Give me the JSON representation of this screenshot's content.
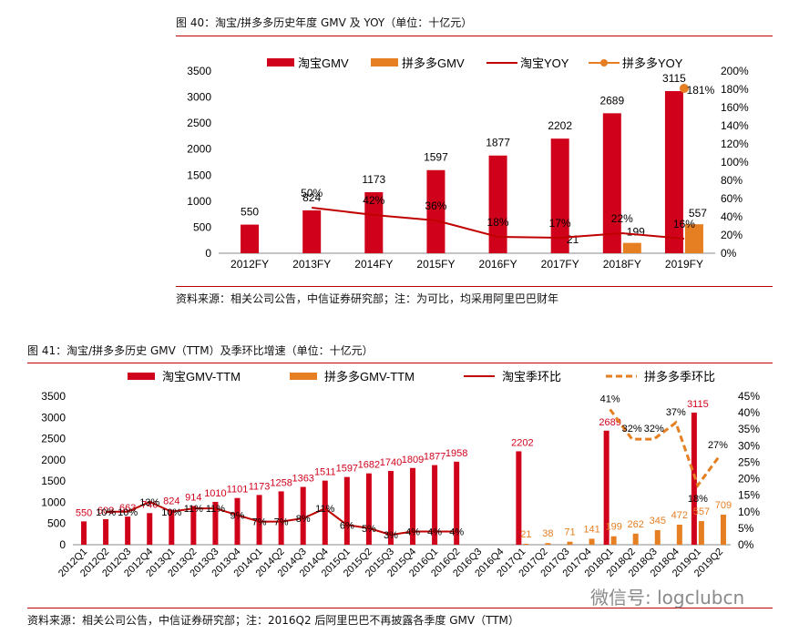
{
  "fig40": {
    "caption": "图 40：淘宝/拼多多历史年度 GMV 及 YOY（单位：十亿元）",
    "source": "资料来源：相关公司公告，中信证券研究部；注：为可比，均采用阿里巴巴财年"
  },
  "fig41": {
    "caption": "图 41：淘宝/拼多多历史 GMV（TTM）及季环比增速（单位：十亿元）",
    "source": "资料来源：相关公司公告，中信证券研究部；注：2016Q2 后阿里巴巴不再披露各季度 GMV（TTM）"
  },
  "watermark": "微信号: logclubcn",
  "colors": {
    "red": "#d0021b",
    "orange": "#e67e22",
    "darkred": "#c00000",
    "rule": "#c00000"
  },
  "chart_data": [
    {
      "type": "bar",
      "categories": [
        "2012FY",
        "2013FY",
        "2014FY",
        "2015FY",
        "2016FY",
        "2017FY",
        "2018FY",
        "2019FY"
      ],
      "series": [
        {
          "name": "淘宝GMV",
          "kind": "bar",
          "axis": "left",
          "values": [
            550,
            824,
            1173,
            1597,
            1877,
            2202,
            2689,
            3115
          ]
        },
        {
          "name": "拼多多GMV",
          "kind": "bar",
          "axis": "left",
          "values": [
            null,
            null,
            null,
            null,
            null,
            null,
            199,
            557
          ],
          "extra_labels": [
            {
              "category": "2017FY",
              "text": "21"
            }
          ]
        },
        {
          "name": "淘宝YOY",
          "kind": "line",
          "axis": "right",
          "values": [
            null,
            50,
            42,
            36,
            18,
            17,
            22,
            16
          ],
          "labels": [
            null,
            "50%",
            "42%",
            "36%",
            "18%",
            "17%",
            "22%",
            "16%"
          ]
        },
        {
          "name": "拼多多YOY",
          "kind": "line",
          "axis": "right",
          "values": [
            null,
            null,
            null,
            null,
            null,
            null,
            null,
            181
          ],
          "labels": [
            null,
            null,
            null,
            null,
            null,
            null,
            null,
            "181%"
          ]
        }
      ],
      "ylim": [
        0,
        3500
      ],
      "yticks": [
        "0",
        "500",
        "1000",
        "1500",
        "2000",
        "2500",
        "3000",
        "3500"
      ],
      "y2lim": [
        0,
        200
      ],
      "y2ticks": [
        "0%",
        "20%",
        "40%",
        "60%",
        "80%",
        "100%",
        "120%",
        "140%",
        "160%",
        "180%",
        "200%"
      ],
      "legend": "top"
    },
    {
      "type": "bar",
      "categories": [
        "2012Q1",
        "2012Q2",
        "2012Q3",
        "2012Q4",
        "2013Q1",
        "2013Q2",
        "2013Q3",
        "2013Q4",
        "2014Q1",
        "2014Q2",
        "2014Q3",
        "2014Q4",
        "2015Q1",
        "2015Q2",
        "2015Q3",
        "2015Q4",
        "2016Q1",
        "2016Q2",
        "2016Q3",
        "2016Q4",
        "2017Q1",
        "2017Q2",
        "2017Q3",
        "2017Q4",
        "2018Q1",
        "2018Q2",
        "2018Q3",
        "2018Q4",
        "2019Q1",
        "2019Q2"
      ],
      "series": [
        {
          "name": "淘宝GMV-TTM",
          "kind": "bar",
          "axis": "left",
          "values": [
            550,
            603,
            663,
            746,
            824,
            914,
            1010,
            1101,
            1173,
            1258,
            1363,
            1511,
            1597,
            1682,
            1740,
            1809,
            1877,
            1958,
            null,
            null,
            2202,
            null,
            null,
            null,
            2689,
            null,
            null,
            null,
            3115,
            null
          ]
        },
        {
          "name": "拼多多GMV-TTM",
          "kind": "bar",
          "axis": "left",
          "values": [
            null,
            null,
            null,
            null,
            null,
            null,
            null,
            null,
            null,
            null,
            null,
            null,
            null,
            null,
            null,
            null,
            null,
            null,
            null,
            null,
            21,
            38,
            71,
            141,
            199,
            262,
            345,
            472,
            557,
            709
          ]
        },
        {
          "name": "淘宝季环比",
          "kind": "line",
          "axis": "right",
          "values": [
            null,
            10,
            10,
            13,
            10,
            11,
            11,
            9,
            7,
            7,
            8,
            11,
            6,
            5,
            3,
            4,
            4,
            4,
            null,
            null,
            null,
            null,
            null,
            null,
            null,
            null,
            null,
            null,
            null,
            null
          ],
          "labels": [
            null,
            "10%",
            "10%",
            "13%",
            "10%",
            "11%",
            "11%",
            "9%",
            "7%",
            "7%",
            "8%",
            "11%",
            "6%",
            "5%",
            "3%",
            "4%",
            "4%",
            "4%",
            null,
            null,
            null,
            null,
            null,
            null,
            null,
            null,
            null,
            null,
            null,
            null
          ]
        },
        {
          "name": "拼多多季环比",
          "kind": "dashed-line",
          "axis": "right",
          "values": [
            null,
            null,
            null,
            null,
            null,
            null,
            null,
            null,
            null,
            null,
            null,
            null,
            null,
            null,
            null,
            null,
            null,
            null,
            null,
            null,
            null,
            null,
            null,
            null,
            41,
            32,
            32,
            37,
            18,
            27
          ],
          "labels": [
            null,
            null,
            null,
            null,
            null,
            null,
            null,
            null,
            null,
            null,
            null,
            null,
            null,
            null,
            null,
            null,
            null,
            null,
            null,
            null,
            null,
            null,
            null,
            null,
            "41%",
            "32%",
            "32%",
            "37%",
            "18%",
            "27%"
          ]
        }
      ],
      "ylim": [
        0,
        3500
      ],
      "yticks": [
        "0",
        "500",
        "1000",
        "1500",
        "2000",
        "2500",
        "3000",
        "3500"
      ],
      "y2lim": [
        0,
        45
      ],
      "y2ticks": [
        "0%",
        "5%",
        "10%",
        "15%",
        "20%",
        "25%",
        "30%",
        "35%",
        "40%",
        "45%"
      ],
      "legend": "top"
    }
  ]
}
